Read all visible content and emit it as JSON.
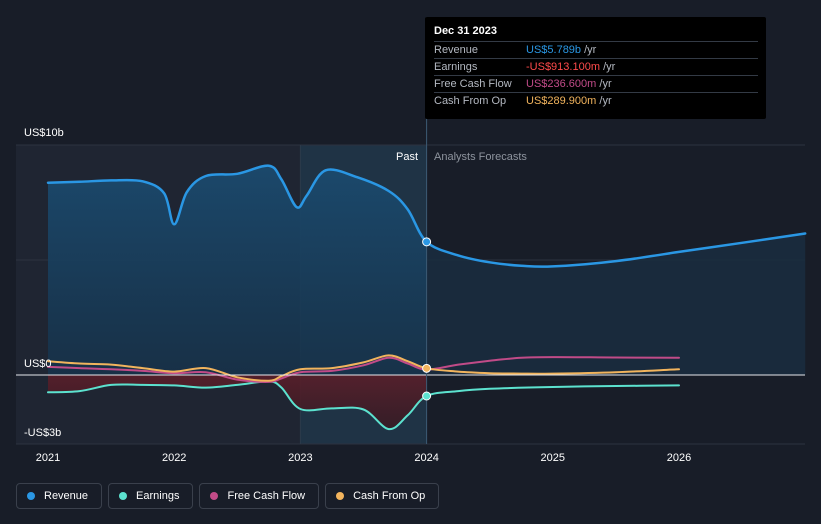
{
  "chart_data": {
    "type": "line",
    "y_axis": {
      "top_label": "US$10b",
      "zero_label": "US$0",
      "bottom_label": "-US$3b",
      "ylim": [
        -3,
        10
      ],
      "unit": "US$ billions"
    },
    "x_axis": {
      "ticks": [
        "2021",
        "2022",
        "2023",
        "2024",
        "2025",
        "2026"
      ],
      "xlim": [
        2021,
        2027
      ]
    },
    "regions": {
      "past_label": "Past",
      "forecast_label": "Analysts Forecasts",
      "divider_x": 2024.0
    },
    "grid": true,
    "series": [
      {
        "name": "Revenue",
        "color": "#2a97e4",
        "points": [
          [
            2021.0,
            8.36
          ],
          [
            2021.25,
            8.4
          ],
          [
            2021.5,
            8.46
          ],
          [
            2021.75,
            8.42
          ],
          [
            2021.92,
            7.9
          ],
          [
            2022.0,
            6.55
          ],
          [
            2022.1,
            7.95
          ],
          [
            2022.25,
            8.65
          ],
          [
            2022.5,
            8.75
          ],
          [
            2022.75,
            9.1
          ],
          [
            2022.85,
            8.5
          ],
          [
            2022.97,
            7.3
          ],
          [
            2023.05,
            7.8
          ],
          [
            2023.2,
            8.9
          ],
          [
            2023.45,
            8.6
          ],
          [
            2023.7,
            8.0
          ],
          [
            2023.85,
            7.2
          ],
          [
            2024.0,
            5.789
          ],
          [
            2024.25,
            5.2
          ],
          [
            2024.5,
            4.9
          ],
          [
            2024.75,
            4.75
          ],
          [
            2025.0,
            4.72
          ],
          [
            2025.5,
            4.95
          ],
          [
            2026.0,
            5.35
          ],
          [
            2026.5,
            5.75
          ],
          [
            2027.0,
            6.15
          ]
        ]
      },
      {
        "name": "Earnings",
        "color": "#5ce2cf",
        "points": [
          [
            2021.0,
            -0.75
          ],
          [
            2021.25,
            -0.7
          ],
          [
            2021.5,
            -0.43
          ],
          [
            2021.75,
            -0.43
          ],
          [
            2022.0,
            -0.45
          ],
          [
            2022.25,
            -0.55
          ],
          [
            2022.5,
            -0.43
          ],
          [
            2022.75,
            -0.28
          ],
          [
            2022.85,
            -0.55
          ],
          [
            2023.0,
            -1.48
          ],
          [
            2023.25,
            -1.45
          ],
          [
            2023.5,
            -1.5
          ],
          [
            2023.7,
            -2.35
          ],
          [
            2023.85,
            -1.75
          ],
          [
            2024.0,
            -0.913
          ],
          [
            2024.25,
            -0.7
          ],
          [
            2024.5,
            -0.6
          ],
          [
            2025.0,
            -0.52
          ],
          [
            2025.5,
            -0.48
          ],
          [
            2026.0,
            -0.45
          ]
        ]
      },
      {
        "name": "Free Cash Flow",
        "color": "#c14b88",
        "points": [
          [
            2021.0,
            0.35
          ],
          [
            2021.25,
            0.3
          ],
          [
            2021.5,
            0.25
          ],
          [
            2021.75,
            0.18
          ],
          [
            2022.0,
            0.08
          ],
          [
            2022.25,
            0.12
          ],
          [
            2022.5,
            -0.2
          ],
          [
            2022.75,
            -0.3
          ],
          [
            2022.85,
            -0.15
          ],
          [
            2023.0,
            0.12
          ],
          [
            2023.25,
            0.18
          ],
          [
            2023.5,
            0.42
          ],
          [
            2023.7,
            0.75
          ],
          [
            2023.85,
            0.5
          ],
          [
            2024.0,
            0.2366
          ],
          [
            2024.25,
            0.45
          ],
          [
            2024.5,
            0.62
          ],
          [
            2024.75,
            0.75
          ],
          [
            2025.0,
            0.78
          ],
          [
            2025.5,
            0.76
          ],
          [
            2026.0,
            0.75
          ]
        ]
      },
      {
        "name": "Cash From Op",
        "color": "#f2b45d",
        "points": [
          [
            2021.0,
            0.6
          ],
          [
            2021.25,
            0.5
          ],
          [
            2021.5,
            0.45
          ],
          [
            2021.75,
            0.3
          ],
          [
            2022.0,
            0.15
          ],
          [
            2022.25,
            0.3
          ],
          [
            2022.5,
            -0.1
          ],
          [
            2022.75,
            -0.25
          ],
          [
            2022.85,
            -0.05
          ],
          [
            2023.0,
            0.25
          ],
          [
            2023.25,
            0.3
          ],
          [
            2023.5,
            0.55
          ],
          [
            2023.7,
            0.85
          ],
          [
            2023.85,
            0.6
          ],
          [
            2024.0,
            0.2899
          ],
          [
            2024.25,
            0.15
          ],
          [
            2024.5,
            0.08
          ],
          [
            2024.75,
            0.06
          ],
          [
            2025.0,
            0.06
          ],
          [
            2025.5,
            0.12
          ],
          [
            2026.0,
            0.25
          ]
        ]
      }
    ]
  },
  "tooltip": {
    "date": "Dec 31 2023",
    "rows": [
      {
        "name": "Revenue",
        "value": "US$5.789b",
        "unit": "/yr",
        "color": "#2a97e4"
      },
      {
        "name": "Earnings",
        "value": "-US$913.100m",
        "unit": "/yr",
        "color": "#ff4b4b"
      },
      {
        "name": "Free Cash Flow",
        "value": "US$236.600m",
        "unit": "/yr",
        "color": "#c14b88"
      },
      {
        "name": "Cash From Op",
        "value": "US$289.900m",
        "unit": "/yr",
        "color": "#f2b45d"
      }
    ]
  },
  "legend": [
    {
      "label": "Revenue",
      "color": "#2a97e4"
    },
    {
      "label": "Earnings",
      "color": "#5ce2cf"
    },
    {
      "label": "Free Cash Flow",
      "color": "#c14b88"
    },
    {
      "label": "Cash From Op",
      "color": "#f2b45d"
    }
  ]
}
